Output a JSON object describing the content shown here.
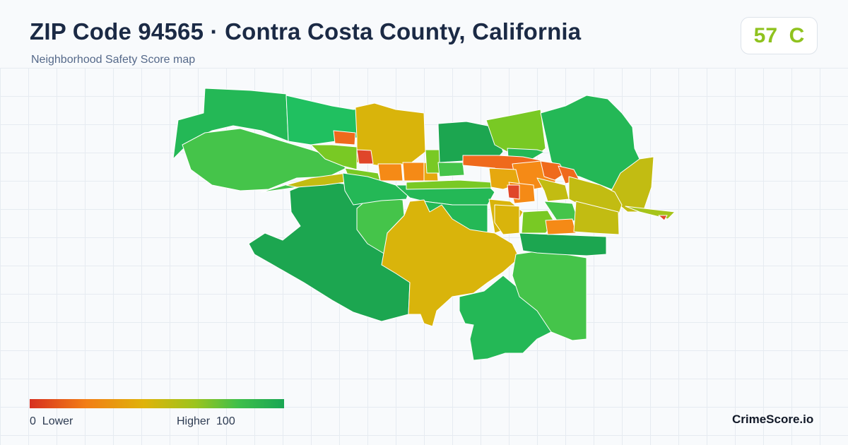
{
  "header": {
    "title": "ZIP Code 94565 · Contra Costa County, California",
    "subtitle": "Neighborhood Safety Score map"
  },
  "score_badge": {
    "score": "57",
    "grade": "C",
    "text": "57  C",
    "color": "#8fc21e"
  },
  "legend": {
    "low_text": "0  Lower",
    "high_text": "Higher  100",
    "gradient_colors": [
      "#d7301f",
      "#f27e15",
      "#dfb30a",
      "#9cc41d",
      "#3fbf4a",
      "#1aa653"
    ]
  },
  "brand": {
    "name": "CrimeScore.io"
  },
  "map": {
    "background": "#f8fafc",
    "grid_color": "#e6ebf1",
    "border_color": "#ffffff",
    "palette": {
      "red": "#e0462a",
      "orange_red": "#ef6a1c",
      "orange": "#f58a16",
      "amber": "#e6a80f",
      "mustard": "#d9b40b",
      "olive": "#c2bc12",
      "yellow_green": "#a6c41a",
      "lime": "#79c924",
      "light_green": "#45c44a",
      "green": "#24b856",
      "bright_green": "#20c060",
      "dark_green": "#1ca650"
    }
  }
}
